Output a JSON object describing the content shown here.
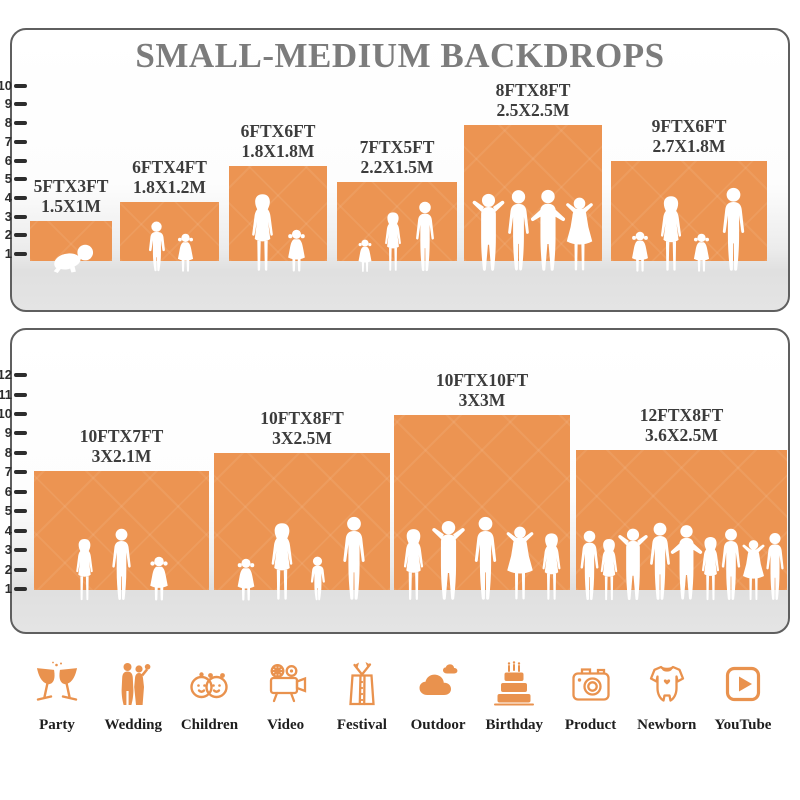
{
  "title": "SMALL-MEDIUM BACKDROPS",
  "colors": {
    "backdrop_orange": "#EC9452",
    "icon_orange": "#E9924E",
    "title_gray": "#7C7C7C",
    "label_dark": "#3C3C3C"
  },
  "panels": [
    {
      "name": "small backdrops",
      "ruler_ticks": [
        "1",
        "2",
        "3",
        "4",
        "5",
        "6",
        "7",
        "8",
        "9",
        "10"
      ],
      "backdrops": [
        {
          "size_ft": "5FTX3FT",
          "size_m": "1.5X1M",
          "figures": [
            {
              "type": "baby",
              "h": 32
            }
          ]
        },
        {
          "size_ft": "6FTX4FT",
          "size_m": "1.8X1.2M",
          "figures": [
            {
              "type": "boy",
              "h": 52
            },
            {
              "type": "girl",
              "h": 40
            }
          ]
        },
        {
          "size_ft": "6FTX6FT",
          "size_m": "1.8X1.8M",
          "figures": [
            {
              "type": "woman",
              "h": 80
            },
            {
              "type": "girl",
              "h": 44
            }
          ]
        },
        {
          "size_ft": "7FTX5FT",
          "size_m": "2.2X1.5M",
          "figures": [
            {
              "type": "girl",
              "h": 34
            },
            {
              "type": "woman",
              "h": 62
            },
            {
              "type": "man",
              "h": 72
            }
          ]
        },
        {
          "size_ft": "8FTX8FT",
          "size_m": "2.5X2.5M",
          "figures": [
            {
              "type": "manhh",
              "h": 82
            },
            {
              "type": "man",
              "h": 84
            },
            {
              "type": "manhips",
              "h": 84
            },
            {
              "type": "womanhh",
              "h": 78
            }
          ]
        },
        {
          "size_ft": "9FTX6FT",
          "size_m": "2.7X1.8M",
          "figures": [
            {
              "type": "girl",
              "h": 42
            },
            {
              "type": "woman",
              "h": 78
            },
            {
              "type": "girl",
              "h": 40
            },
            {
              "type": "man",
              "h": 86
            }
          ]
        }
      ]
    },
    {
      "name": "medium backdrops",
      "ruler_ticks": [
        "1",
        "2",
        "3",
        "4",
        "5",
        "6",
        "7",
        "8",
        "9",
        "10",
        "11",
        "12"
      ],
      "backdrops": [
        {
          "size_ft": "10FTX7FT",
          "size_m": "3X2.1M",
          "figures": [
            {
              "type": "woman",
              "h": 64
            },
            {
              "type": "man",
              "h": 74
            },
            {
              "type": "girl",
              "h": 46
            }
          ]
        },
        {
          "size_ft": "10FTX8FT",
          "size_m": "3X2.5M",
          "figures": [
            {
              "type": "girl",
              "h": 44
            },
            {
              "type": "woman",
              "h": 80
            },
            {
              "type": "boy",
              "h": 46
            },
            {
              "type": "man",
              "h": 86
            }
          ]
        },
        {
          "size_ft": "10FTX10FT",
          "size_m": "3X3M",
          "figures": [
            {
              "type": "woman",
              "h": 74
            },
            {
              "type": "manhh",
              "h": 84
            },
            {
              "type": "man",
              "h": 86
            },
            {
              "type": "womanhh",
              "h": 78
            },
            {
              "type": "woman",
              "h": 70
            }
          ]
        },
        {
          "size_ft": "12FTX8FT",
          "size_m": "3.6X2.5M",
          "figures": [
            {
              "type": "man",
              "h": 72
            },
            {
              "type": "woman",
              "h": 64
            },
            {
              "type": "manhh",
              "h": 76
            },
            {
              "type": "man",
              "h": 80
            },
            {
              "type": "manhips",
              "h": 78
            },
            {
              "type": "woman",
              "h": 66
            },
            {
              "type": "man",
              "h": 74
            },
            {
              "type": "womanhh",
              "h": 64
            },
            {
              "type": "man",
              "h": 70
            }
          ]
        }
      ]
    }
  ],
  "categories": [
    {
      "label": "Party",
      "icon": "party-icon"
    },
    {
      "label": "Wedding",
      "icon": "wedding-icon"
    },
    {
      "label": "Children",
      "icon": "children-icon"
    },
    {
      "label": "Video",
      "icon": "video-icon"
    },
    {
      "label": "Festival",
      "icon": "festival-icon"
    },
    {
      "label": "Outdoor",
      "icon": "outdoor-icon"
    },
    {
      "label": "Birthday",
      "icon": "birthday-icon"
    },
    {
      "label": "Product",
      "icon": "product-icon"
    },
    {
      "label": "Newborn",
      "icon": "newborn-icon"
    },
    {
      "label": "YouTube",
      "icon": "youtube-icon"
    }
  ]
}
